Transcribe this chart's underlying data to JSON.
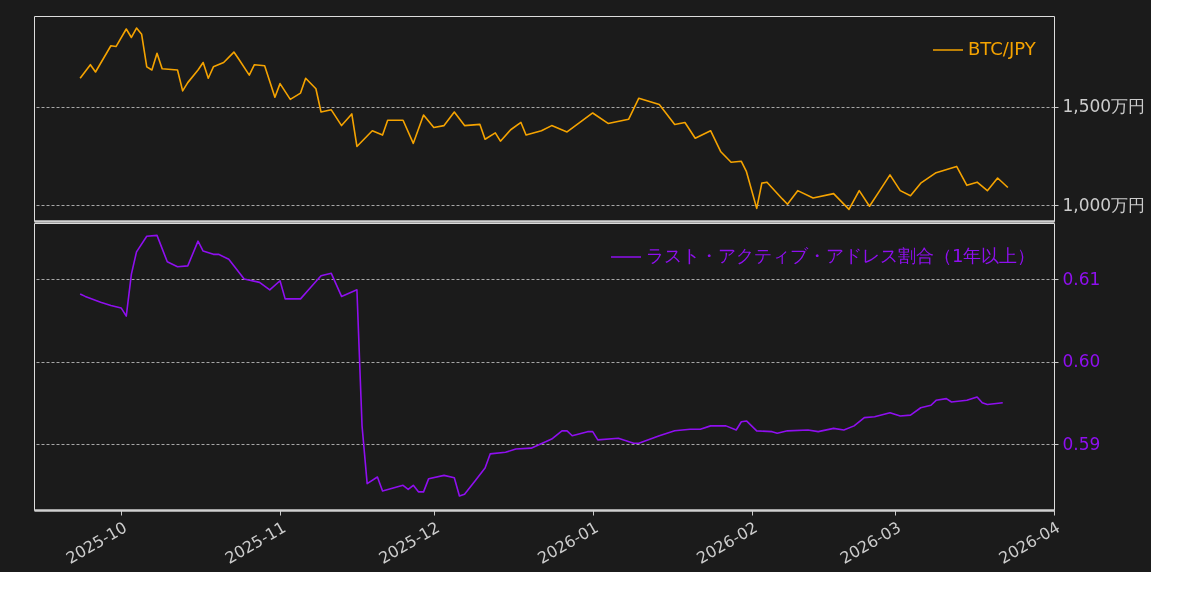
{
  "chart_data": [
    {
      "type": "line",
      "xlim": [
        "2025-09-14",
        "2026-04-01"
      ],
      "ylim": [
        920,
        1960
      ],
      "yticks": [
        {
          "value": 1000,
          "label": "1,000万円"
        },
        {
          "value": 1500,
          "label": "1,500万円"
        }
      ],
      "grid": "y",
      "legend": "top right",
      "tick_labels": "y",
      "series": [
        {
          "name": "BTC/JPY",
          "color": "#f5a300",
          "x": [
            "2025-09-23",
            "2025-09-25",
            "2025-09-26",
            "2025-09-29",
            "2025-09-30",
            "2025-10-02",
            "2025-10-03",
            "2025-10-04",
            "2025-10-05",
            "2025-10-06",
            "2025-10-07",
            "2025-10-08",
            "2025-10-09",
            "2025-10-12",
            "2025-10-13",
            "2025-10-14",
            "2025-10-16",
            "2025-10-17",
            "2025-10-18",
            "2025-10-19",
            "2025-10-21",
            "2025-10-23",
            "2025-10-24",
            "2025-10-26",
            "2025-10-27",
            "2025-10-29",
            "2025-10-31",
            "2025-11-01",
            "2025-11-03",
            "2025-11-05",
            "2025-11-06",
            "2025-11-08",
            "2025-11-09",
            "2025-11-11",
            "2025-11-13",
            "2025-11-15",
            "2025-11-16",
            "2025-11-19",
            "2025-11-21",
            "2025-11-22",
            "2025-11-25",
            "2025-11-27",
            "2025-11-29",
            "2025-12-01",
            "2025-12-03",
            "2025-12-05",
            "2025-12-07",
            "2025-12-10",
            "2025-12-11",
            "2025-12-13",
            "2025-12-14",
            "2025-12-16",
            "2025-12-18",
            "2025-12-19",
            "2025-12-22",
            "2025-12-24",
            "2025-12-27",
            "2026-01-01",
            "2026-01-04",
            "2026-01-08",
            "2026-01-10",
            "2026-01-14",
            "2026-01-17",
            "2026-01-19",
            "2026-01-21",
            "2026-01-24",
            "2026-01-26",
            "2026-01-28",
            "2026-01-30",
            "2026-01-31",
            "2026-02-02",
            "2026-02-03",
            "2026-02-04",
            "2026-02-07",
            "2026-02-08",
            "2026-02-10",
            "2026-02-13",
            "2026-02-17",
            "2026-02-20",
            "2026-02-22",
            "2026-02-24",
            "2026-02-26",
            "2026-02-28",
            "2026-03-02",
            "2026-03-04",
            "2026-03-06",
            "2026-03-09",
            "2026-03-13",
            "2026-03-15",
            "2026-03-17",
            "2026-03-19",
            "2026-03-21",
            "2026-03-23"
          ],
          "values": [
            1644,
            1713,
            1676,
            1809,
            1805,
            1894,
            1851,
            1899,
            1867,
            1702,
            1686,
            1771,
            1692,
            1686,
            1580,
            1622,
            1686,
            1724,
            1644,
            1702,
            1724,
            1777,
            1739,
            1660,
            1713,
            1708,
            1548,
            1617,
            1537,
            1569,
            1644,
            1591,
            1473,
            1484,
            1404,
            1463,
            1298,
            1378,
            1356,
            1431,
            1431,
            1314,
            1458,
            1394,
            1404,
            1473,
            1404,
            1410,
            1335,
            1367,
            1325,
            1383,
            1420,
            1356,
            1378,
            1404,
            1372,
            1468,
            1415,
            1436,
            1543,
            1511,
            1410,
            1420,
            1340,
            1378,
            1271,
            1218,
            1223,
            1170,
            984,
            1112,
            1117,
            1032,
            1005,
            1074,
            1037,
            1059,
            979,
            1074,
            995,
            1074,
            1154,
            1074,
            1048,
            1112,
            1165,
            1197,
            1101,
            1117,
            1074,
            1138,
            1090
          ]
        }
      ]
    },
    {
      "type": "line",
      "xlim": [
        "2025-09-14",
        "2026-04-01"
      ],
      "ylim": [
        0.582,
        0.6168
      ],
      "xticks": [
        "2025-10",
        "2025-11",
        "2025-12",
        "2026-01",
        "2026-02",
        "2026-03",
        "2026-04"
      ],
      "yticks": [
        0.59,
        {
          "value": 0.6,
          "label": "0.60"
        },
        0.61
      ],
      "grid": "y",
      "legend": "top right",
      "series": [
        {
          "name": "ラスト・アクティブ・アドレス割合（1年以上）",
          "color": "#8f0fef",
          "x": [
            "2025-09-23",
            "2025-09-24",
            "2025-09-27",
            "2025-09-29",
            "2025-10-01",
            "2025-10-02",
            "2025-10-03",
            "2025-10-04",
            "2025-10-06",
            "2025-10-08",
            "2025-10-10",
            "2025-10-12",
            "2025-10-14",
            "2025-10-16",
            "2025-10-17",
            "2025-10-19",
            "2025-10-20",
            "2025-10-22",
            "2025-10-25",
            "2025-10-28",
            "2025-10-30",
            "2025-11-01",
            "2025-11-02",
            "2025-11-05",
            "2025-11-07",
            "2025-11-09",
            "2025-11-11",
            "2025-11-13",
            "2025-11-16",
            "2025-11-17",
            "2025-11-18",
            "2025-11-20",
            "2025-11-21",
            "2025-11-25",
            "2025-11-26",
            "2025-11-27",
            "2025-11-28",
            "2025-11-29",
            "2025-11-30",
            "2025-12-03",
            "2025-12-05",
            "2025-12-06",
            "2025-12-07",
            "2025-12-09",
            "2025-12-11",
            "2025-12-12",
            "2025-12-15",
            "2025-12-17",
            "2025-12-20",
            "2025-12-24",
            "2025-12-26",
            "2025-12-27",
            "2025-12-28",
            "2025-12-31",
            "2026-01-01",
            "2026-01-02",
            "2026-01-06",
            "2026-01-09",
            "2026-01-10",
            "2026-01-14",
            "2026-01-17",
            "2026-01-20",
            "2026-01-22",
            "2026-01-24",
            "2026-01-27",
            "2026-01-29",
            "2026-01-30",
            "2026-01-31",
            "2026-02-02",
            "2026-02-05",
            "2026-02-06",
            "2026-02-08",
            "2026-02-12",
            "2026-02-14",
            "2026-02-17",
            "2026-02-19",
            "2026-02-21",
            "2026-02-23",
            "2026-02-25",
            "2026-02-28",
            "2026-03-02",
            "2026-03-04",
            "2026-03-06",
            "2026-03-08",
            "2026-03-09",
            "2026-03-11",
            "2026-03-12",
            "2026-03-15",
            "2026-03-17",
            "2026-03-18",
            "2026-03-19",
            "2026-03-22"
          ],
          "values": [
            0.6082,
            0.6079,
            0.6072,
            0.6068,
            0.6065,
            0.6055,
            0.6106,
            0.6133,
            0.6152,
            0.6153,
            0.6121,
            0.6115,
            0.6116,
            0.6146,
            0.6134,
            0.613,
            0.613,
            0.6124,
            0.61,
            0.6096,
            0.6087,
            0.6098,
            0.6076,
            0.6076,
            0.609,
            0.6104,
            0.6107,
            0.6079,
            0.6087,
            0.5922,
            0.5852,
            0.586,
            0.5843,
            0.585,
            0.5845,
            0.585,
            0.5842,
            0.5842,
            0.5858,
            0.5862,
            0.5859,
            0.5837,
            0.5839,
            0.5855,
            0.5871,
            0.5888,
            0.589,
            0.5894,
            0.5895,
            0.5906,
            0.5916,
            0.5916,
            0.591,
            0.5915,
            0.5915,
            0.5905,
            0.5907,
            0.5901,
            0.5901,
            0.591,
            0.5916,
            0.5918,
            0.5918,
            0.5922,
            0.5922,
            0.5917,
            0.5927,
            0.5928,
            0.5916,
            0.5915,
            0.5913,
            0.5916,
            0.5917,
            0.5915,
            0.5919,
            0.5917,
            0.5922,
            0.5932,
            0.5933,
            0.5938,
            0.5934,
            0.5935,
            0.5944,
            0.5947,
            0.5953,
            0.5955,
            0.5951,
            0.5953,
            0.5957,
            0.595,
            0.5948,
            0.595
          ]
        }
      ]
    }
  ]
}
